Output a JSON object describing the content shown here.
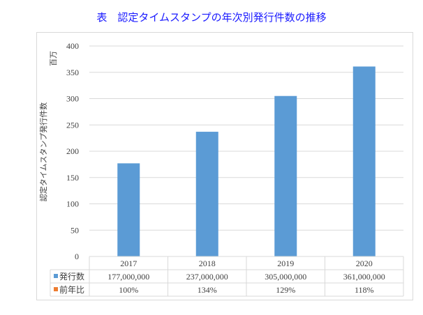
{
  "title": "表　認定タイムスタンプの年次別発行件数の推移",
  "chart_data": {
    "type": "bar",
    "ylabel": "認定タイムスタンプ発行件数",
    "yunit": "百万",
    "ylim": [
      0,
      400
    ],
    "yticks": [
      0,
      50,
      100,
      150,
      200,
      250,
      300,
      350,
      400
    ],
    "grid": true,
    "categories": [
      "2017",
      "2018",
      "2019",
      "2020"
    ],
    "series": [
      {
        "name": "発行数",
        "values": [
          177,
          237,
          305,
          361
        ],
        "color": "#5b9bd5"
      },
      {
        "name": "前年比",
        "color": "#ed7d31"
      }
    ],
    "table": {
      "rows": [
        {
          "name": "発行数",
          "values": [
            "177,000,000",
            "237,000,000",
            "305,000,000",
            "361,000,000"
          ]
        },
        {
          "name": "前年比",
          "values": [
            "100%",
            "134%",
            "129%",
            "118%"
          ]
        }
      ]
    }
  }
}
